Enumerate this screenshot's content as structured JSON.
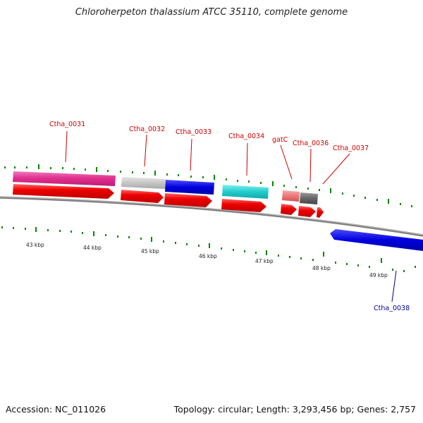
{
  "title": "Chloroherpeton thalassium ATCC 35110, complete genome",
  "footer": {
    "accession": "Accession: NC_011026",
    "summary": "Topology: circular; Length: 3,293,456 bp; Genes: 2,757"
  },
  "gene_labels": {
    "ctha_0031": "Ctha_0031",
    "ctha_0032": "Ctha_0032",
    "ctha_0033": "Ctha_0033",
    "ctha_0034": "Ctha_0034",
    "gatc": "gatC",
    "ctha_0036": "Ctha_0036",
    "ctha_0037": "Ctha_0037",
    "ctha_0038": "Ctha_0038"
  },
  "scale_labels": {
    "k43": "43 kbp",
    "k44": "44 kbp",
    "k45": "45 kbp",
    "k46": "46 kbp",
    "k47": "47 kbp",
    "k48": "48 kbp",
    "k49": "49 kbp"
  },
  "colors": {
    "cds_red": "#ee0000",
    "ctha_0031": "#e0318f",
    "ctha_0032": "#c6c6c6",
    "ctha_0033": "#0000dd",
    "ctha_0034": "#22cccc",
    "gatc": "#ee7777",
    "ctha_0036": "#666666",
    "ctha_0038": "#0000dd",
    "label_forward": "#cc0000",
    "label_reverse": "#000099",
    "tick_green": "#008800",
    "backbone": "#808080"
  }
}
